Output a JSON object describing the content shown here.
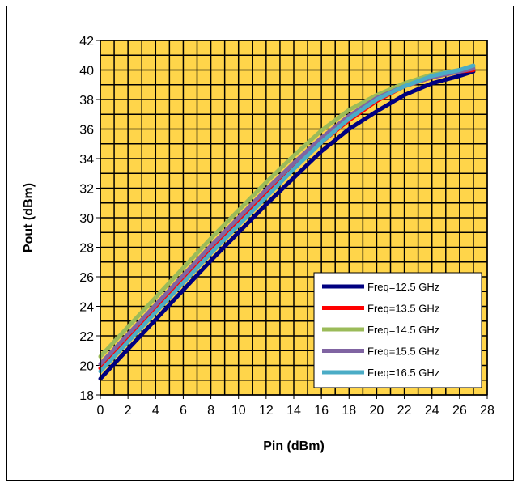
{
  "chart_data": {
    "type": "line",
    "xlabel": "Pin (dBm)",
    "ylabel": "Pout (dBm)",
    "xlim": [
      0,
      28
    ],
    "ylim": [
      18,
      42
    ],
    "x_ticks": [
      0,
      2,
      4,
      6,
      8,
      10,
      12,
      14,
      16,
      18,
      20,
      22,
      24,
      26,
      28
    ],
    "y_ticks": [
      18,
      20,
      22,
      24,
      26,
      28,
      30,
      32,
      34,
      36,
      38,
      40,
      42
    ],
    "grid": true,
    "plot_background": "#ffd54a",
    "legend_position": "bottom-right",
    "x": [
      0,
      2,
      4,
      6,
      8,
      10,
      12,
      14,
      16,
      18,
      20,
      22,
      24,
      26,
      27
    ],
    "series": [
      {
        "name": "Freq=12.5 GHz",
        "color": "#000080",
        "values": [
          19.1,
          21.1,
          23.1,
          25.1,
          27.1,
          29.0,
          30.9,
          32.7,
          34.5,
          36.0,
          37.2,
          38.3,
          39.1,
          39.6,
          39.9
        ]
      },
      {
        "name": "Freq=13.5 GHz",
        "color": "#ff0000",
        "values": [
          19.8,
          21.8,
          23.8,
          25.8,
          27.8,
          29.7,
          31.6,
          33.4,
          35.1,
          36.6,
          37.9,
          38.9,
          39.5,
          39.9,
          40.0
        ]
      },
      {
        "name": "Freq=14.5 GHz",
        "color": "#9bbb59",
        "values": [
          20.6,
          22.6,
          24.6,
          26.6,
          28.6,
          30.5,
          32.4,
          34.2,
          35.9,
          37.3,
          38.3,
          39.1,
          39.7,
          40.0,
          40.2
        ]
      },
      {
        "name": "Freq=15.5 GHz",
        "color": "#8064a2",
        "values": [
          20.1,
          22.1,
          24.1,
          26.1,
          28.1,
          30.0,
          31.9,
          33.7,
          35.4,
          36.9,
          38.1,
          38.9,
          39.5,
          39.9,
          40.1
        ]
      },
      {
        "name": "Freq=16.5 GHz",
        "color": "#4bacc6",
        "values": [
          19.6,
          21.6,
          23.6,
          25.6,
          27.6,
          29.5,
          31.4,
          33.3,
          35.1,
          36.7,
          38.0,
          38.9,
          39.6,
          40.0,
          40.3
        ]
      }
    ]
  }
}
